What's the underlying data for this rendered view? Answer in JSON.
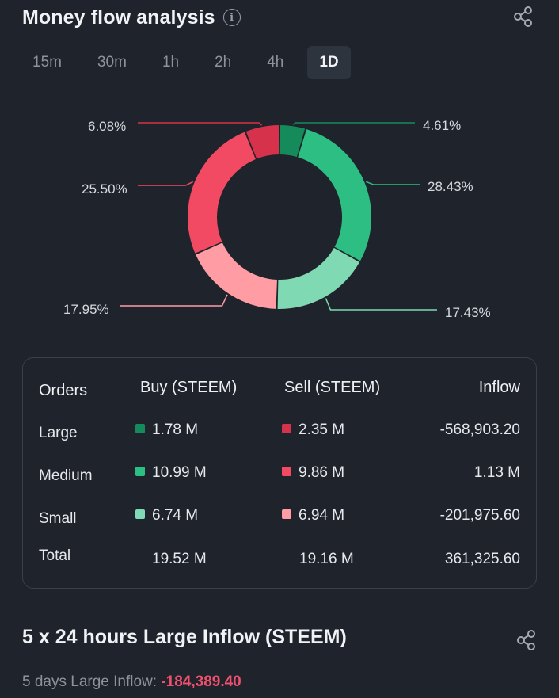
{
  "header": {
    "title": "Money flow analysis",
    "info_glyph": "i"
  },
  "tabs": [
    {
      "label": "15m",
      "active": false
    },
    {
      "label": "30m",
      "active": false
    },
    {
      "label": "1h",
      "active": false
    },
    {
      "label": "2h",
      "active": false
    },
    {
      "label": "4h",
      "active": false
    },
    {
      "label": "1D",
      "active": true
    }
  ],
  "chart_data": {
    "type": "pie",
    "variant": "donut",
    "slices": [
      {
        "label": "Large Buy",
        "percent": 4.61,
        "display": "4.61%",
        "color": "#158b5c"
      },
      {
        "label": "Medium Buy",
        "percent": 28.43,
        "display": "28.43%",
        "color": "#2dbe83"
      },
      {
        "label": "Small Buy",
        "percent": 17.43,
        "display": "17.43%",
        "color": "#7fd9b2"
      },
      {
        "label": "Small Sell",
        "percent": 17.95,
        "display": "17.95%",
        "color": "#ff9ca4"
      },
      {
        "label": "Medium Sell",
        "percent": 25.5,
        "display": "25.50%",
        "color": "#f24a62"
      },
      {
        "label": "Large Sell",
        "percent": 6.08,
        "display": "6.08%",
        "color": "#d6324b"
      }
    ]
  },
  "orders": {
    "headers": {
      "orders": "Orders",
      "buy": "Buy (STEEM)",
      "sell": "Sell (STEEM)",
      "inflow": "Inflow"
    },
    "rows": [
      {
        "label": "Large",
        "buy": "1.78 M",
        "sell": "2.35 M",
        "inflow": "-568,903.20",
        "buy_color": "#158b5c",
        "sell_color": "#d6324b"
      },
      {
        "label": "Medium",
        "buy": "10.99 M",
        "sell": "9.86 M",
        "inflow": "1.13 M",
        "buy_color": "#2dbe83",
        "sell_color": "#f24a62"
      },
      {
        "label": "Small",
        "buy": "6.74 M",
        "sell": "6.94 M",
        "inflow": "-201,975.60",
        "buy_color": "#7fd9b2",
        "sell_color": "#ff9ca4"
      }
    ],
    "total": {
      "label": "Total",
      "buy": "19.52 M",
      "sell": "19.16 M",
      "inflow": "361,325.60"
    }
  },
  "large_inflow": {
    "title": "5 x 24 hours Large Inflow (STEEM)",
    "label": "5 days Large Inflow:",
    "value": "-184,389.40"
  },
  "colors": {
    "background": "#1f232b",
    "negative": "#f0506e"
  }
}
